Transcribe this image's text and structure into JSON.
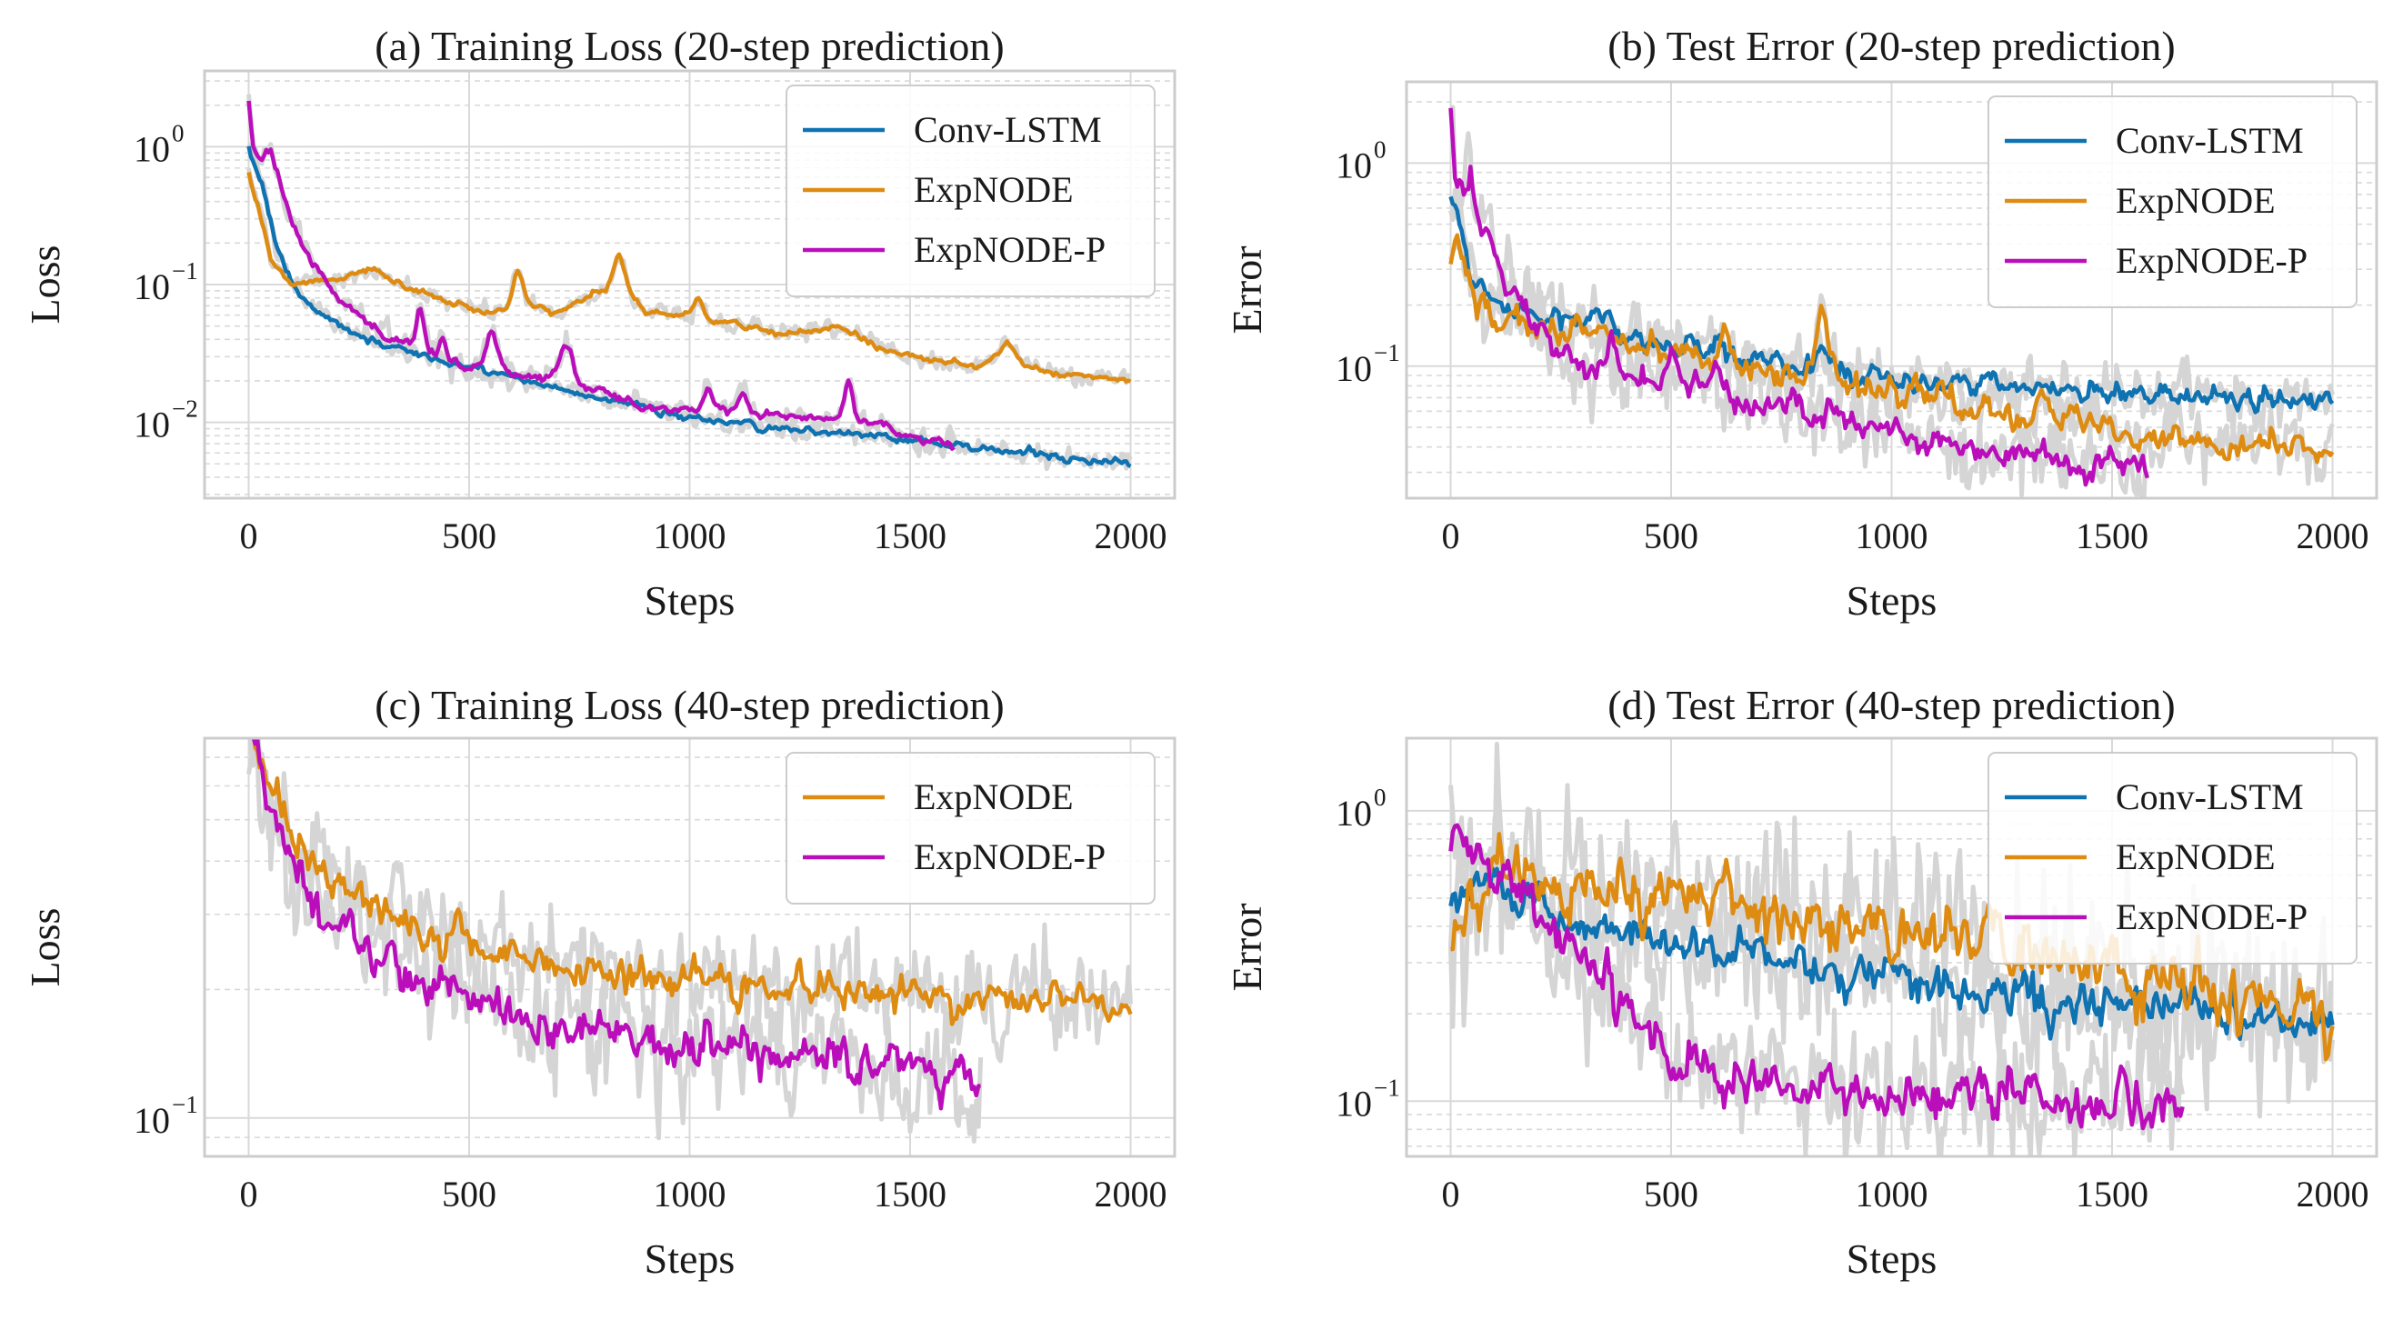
{
  "colors": {
    "conv_lstm": "#0f72b1",
    "expnode": "#de8b12",
    "expnode_p": "#bb0ebb",
    "band": "#d5d5d5",
    "grid": "#d9d9d9",
    "spine": "#cccccc"
  },
  "chart_data": [
    {
      "type": "line",
      "title": "(a) Training Loss (20-step prediction)",
      "xlabel": "Steps",
      "ylabel": "Loss",
      "yscale": "log",
      "xlim": [
        -100,
        2100
      ],
      "ylim_log10": [
        -2.55,
        0.55
      ],
      "xticks": [
        0,
        500,
        1000,
        1500,
        2000
      ],
      "yticks": [
        {
          "base": "10",
          "exp": "0",
          "value": 1
        },
        {
          "base": "10",
          "exp": "−1",
          "value": 0.1
        },
        {
          "base": "10",
          "exp": "−2",
          "value": 0.01
        }
      ],
      "legend": "top-right",
      "series": [
        {
          "name": "Conv-LSTM",
          "color_key": "conv_lstm",
          "x_end": 2000,
          "noise": 0.03,
          "anchors": [
            [
              0,
              1.0
            ],
            [
              30,
              0.55
            ],
            [
              60,
              0.2
            ],
            [
              100,
              0.1
            ],
            [
              150,
              0.065
            ],
            [
              250,
              0.042
            ],
            [
              400,
              0.03
            ],
            [
              600,
              0.021
            ],
            [
              800,
              0.015
            ],
            [
              1000,
              0.011
            ],
            [
              1200,
              0.009
            ],
            [
              1400,
              0.008
            ],
            [
              1600,
              0.0068
            ],
            [
              1800,
              0.0058
            ],
            [
              2000,
              0.005
            ]
          ],
          "spikes": []
        },
        {
          "name": "ExpNODE",
          "color_key": "expnode",
          "x_end": 2000,
          "noise": 0.025,
          "anchors": [
            [
              0,
              0.65
            ],
            [
              20,
              0.4
            ],
            [
              50,
              0.15
            ],
            [
              100,
              0.1
            ],
            [
              200,
              0.11
            ],
            [
              270,
              0.13
            ],
            [
              350,
              0.1
            ],
            [
              450,
              0.075
            ],
            [
              550,
              0.06
            ],
            [
              620,
              0.075
            ],
            [
              700,
              0.065
            ],
            [
              840,
              0.1
            ],
            [
              900,
              0.065
            ],
            [
              1000,
              0.06
            ],
            [
              1100,
              0.052
            ],
            [
              1200,
              0.045
            ],
            [
              1350,
              0.048
            ],
            [
              1450,
              0.033
            ],
            [
              1550,
              0.028
            ],
            [
              1650,
              0.025
            ],
            [
              1720,
              0.03
            ],
            [
              1800,
              0.024
            ],
            [
              1900,
              0.021
            ],
            [
              2000,
              0.02
            ]
          ],
          "spikes": [
            [
              610,
              0.25,
              10
            ],
            [
              840,
              0.22,
              12
            ],
            [
              1020,
              0.12,
              10
            ],
            [
              1720,
              0.1,
              15
            ]
          ]
        },
        {
          "name": "ExpNODE-P",
          "color_key": "expnode_p",
          "x_end": 1600,
          "noise": 0.035,
          "anchors": [
            [
              0,
              2.2
            ],
            [
              10,
              1.0
            ],
            [
              30,
              0.8
            ],
            [
              50,
              1.0
            ],
            [
              80,
              0.45
            ],
            [
              120,
              0.2
            ],
            [
              200,
              0.08
            ],
            [
              300,
              0.045
            ],
            [
              380,
              0.035
            ],
            [
              450,
              0.026
            ],
            [
              550,
              0.024
            ],
            [
              650,
              0.022
            ],
            [
              750,
              0.018
            ],
            [
              850,
              0.015
            ],
            [
              1000,
              0.012
            ],
            [
              1100,
              0.012
            ],
            [
              1250,
              0.011
            ],
            [
              1400,
              0.01
            ],
            [
              1500,
              0.008
            ],
            [
              1600,
              0.007
            ]
          ],
          "spikes": [
            [
              390,
              0.3,
              8
            ],
            [
              440,
              0.18,
              8
            ],
            [
              550,
              0.3,
              12
            ],
            [
              720,
              0.3,
              15
            ],
            [
              1040,
              0.18,
              10
            ],
            [
              1120,
              0.15,
              10
            ],
            [
              1360,
              0.3,
              10
            ]
          ]
        }
      ]
    },
    {
      "type": "line",
      "title": "(b) Test Error (20-step prediction)",
      "xlabel": "Steps",
      "ylabel": "Error",
      "yscale": "log",
      "xlim": [
        -100,
        2100
      ],
      "ylim_log10": [
        -1.65,
        0.4
      ],
      "xticks": [
        0,
        500,
        1000,
        1500,
        2000
      ],
      "yticks": [
        {
          "base": "10",
          "exp": "0",
          "value": 1
        },
        {
          "base": "10",
          "exp": "−1",
          "value": 0.1
        }
      ],
      "legend": "top-right",
      "series": [
        {
          "name": "Conv-LSTM",
          "color_key": "conv_lstm",
          "x_end": 2000,
          "noise": 0.06,
          "anchors": [
            [
              0,
              0.7
            ],
            [
              20,
              0.5
            ],
            [
              40,
              0.3
            ],
            [
              80,
              0.22
            ],
            [
              150,
              0.18
            ],
            [
              300,
              0.16
            ],
            [
              500,
              0.13
            ],
            [
              700,
              0.1
            ],
            [
              900,
              0.09
            ],
            [
              1100,
              0.085
            ],
            [
              1300,
              0.08
            ],
            [
              1500,
              0.075
            ],
            [
              1700,
              0.07
            ],
            [
              1900,
              0.068
            ],
            [
              2000,
              0.07
            ]
          ],
          "spikes": [
            [
              600,
              0.08,
              15
            ],
            [
              840,
              0.12,
              12
            ]
          ]
        },
        {
          "name": "ExpNODE",
          "color_key": "expnode",
          "x_end": 2000,
          "noise": 0.07,
          "anchors": [
            [
              0,
              0.32
            ],
            [
              15,
              0.45
            ],
            [
              30,
              0.3
            ],
            [
              60,
              0.2
            ],
            [
              100,
              0.18
            ],
            [
              200,
              0.16
            ],
            [
              300,
              0.15
            ],
            [
              400,
              0.13
            ],
            [
              500,
              0.115
            ],
            [
              600,
              0.105
            ],
            [
              700,
              0.095
            ],
            [
              800,
              0.085
            ],
            [
              850,
              0.1
            ],
            [
              900,
              0.08
            ],
            [
              1000,
              0.075
            ],
            [
              1100,
              0.072
            ],
            [
              1200,
              0.06
            ],
            [
              1300,
              0.056
            ],
            [
              1400,
              0.058
            ],
            [
              1500,
              0.047
            ],
            [
              1700,
              0.043
            ],
            [
              1800,
              0.041
            ],
            [
              2000,
              0.04
            ]
          ],
          "spikes": [
            [
              620,
              0.15,
              10
            ],
            [
              840,
              0.3,
              10
            ],
            [
              1340,
              0.12,
              10
            ]
          ]
        },
        {
          "name": "ExpNODE-P",
          "color_key": "expnode_p",
          "x_end": 1580,
          "noise": 0.08,
          "anchors": [
            [
              0,
              2.0
            ],
            [
              10,
              0.8
            ],
            [
              30,
              0.6
            ],
            [
              45,
              0.9
            ],
            [
              70,
              0.5
            ],
            [
              120,
              0.28
            ],
            [
              180,
              0.17
            ],
            [
              230,
              0.12
            ],
            [
              280,
              0.095
            ],
            [
              350,
              0.1
            ],
            [
              450,
              0.085
            ],
            [
              550,
              0.08
            ],
            [
              650,
              0.068
            ],
            [
              750,
              0.063
            ],
            [
              850,
              0.057
            ],
            [
              950,
              0.052
            ],
            [
              1050,
              0.046
            ],
            [
              1150,
              0.041
            ],
            [
              1250,
              0.037
            ],
            [
              1350,
              0.035
            ],
            [
              1450,
              0.032
            ],
            [
              1580,
              0.031
            ]
          ],
          "spikes": [
            [
              370,
              0.18,
              10
            ],
            [
              500,
              0.15,
              10
            ],
            [
              600,
              0.15,
              10
            ],
            [
              780,
              0.12,
              10
            ]
          ]
        }
      ]
    },
    {
      "type": "line",
      "title": "(c) Training Loss (40-step prediction)",
      "xlabel": "Steps",
      "ylabel": "Loss",
      "yscale": "log",
      "xlim": [
        -100,
        2100
      ],
      "ylim_log10": [
        -1.09,
        -0.11
      ],
      "xticks": [
        0,
        500,
        1000,
        1500,
        2000
      ],
      "yticks": [
        {
          "base": "10",
          "exp": "−1",
          "value": 0.1
        }
      ],
      "legend": "top-right",
      "series": [
        {
          "name": "ExpNODE",
          "color_key": "expnode",
          "x_end": 2000,
          "noise": 0.05,
          "anchors": [
            [
              0,
              0.8
            ],
            [
              20,
              0.72
            ],
            [
              50,
              0.6
            ],
            [
              100,
              0.45
            ],
            [
              200,
              0.36
            ],
            [
              300,
              0.3
            ],
            [
              400,
              0.27
            ],
            [
              500,
              0.25
            ],
            [
              700,
              0.23
            ],
            [
              900,
              0.215
            ],
            [
              1100,
              0.205
            ],
            [
              1300,
              0.2
            ],
            [
              1500,
              0.195
            ],
            [
              1700,
              0.19
            ],
            [
              1900,
              0.185
            ],
            [
              2000,
              0.18
            ]
          ],
          "spikes": []
        },
        {
          "name": "ExpNODE-P",
          "color_key": "expnode_p",
          "x_end": 1660,
          "noise": 0.06,
          "anchors": [
            [
              0,
              0.8
            ],
            [
              20,
              0.7
            ],
            [
              50,
              0.5
            ],
            [
              100,
              0.37
            ],
            [
              200,
              0.29
            ],
            [
              300,
              0.24
            ],
            [
              400,
              0.21
            ],
            [
              500,
              0.19
            ],
            [
              600,
              0.175
            ],
            [
              800,
              0.16
            ],
            [
              1000,
              0.148
            ],
            [
              1200,
              0.14
            ],
            [
              1400,
              0.135
            ],
            [
              1550,
              0.13
            ],
            [
              1650,
              0.12
            ]
          ],
          "spikes": []
        }
      ]
    },
    {
      "type": "line",
      "title": "(d) Test Error (40-step prediction)",
      "xlabel": "Steps",
      "ylabel": "Error",
      "yscale": "log",
      "xlim": [
        -100,
        2100
      ],
      "ylim_log10": [
        -1.19,
        0.25
      ],
      "xticks": [
        0,
        500,
        1000,
        1500,
        2000
      ],
      "yticks": [
        {
          "base": "10",
          "exp": "0",
          "value": 1
        },
        {
          "base": "10",
          "exp": "−1",
          "value": 0.1
        }
      ],
      "legend": "top-right",
      "series": [
        {
          "name": "Conv-LSTM",
          "color_key": "conv_lstm",
          "x_end": 2000,
          "noise": 0.08,
          "anchors": [
            [
              0,
              0.52
            ],
            [
              30,
              0.5
            ],
            [
              60,
              0.62
            ],
            [
              100,
              0.6
            ],
            [
              150,
              0.5
            ],
            [
              200,
              0.45
            ],
            [
              300,
              0.4
            ],
            [
              400,
              0.37
            ],
            [
              500,
              0.35
            ],
            [
              700,
              0.31
            ],
            [
              900,
              0.29
            ],
            [
              1100,
              0.27
            ],
            [
              1300,
              0.24
            ],
            [
              1500,
              0.22
            ],
            [
              1700,
              0.21
            ],
            [
              1900,
              0.19
            ],
            [
              2000,
              0.19
            ]
          ],
          "spikes": []
        },
        {
          "name": "ExpNODE",
          "color_key": "expnode",
          "x_end": 2000,
          "noise": 0.12,
          "anchors": [
            [
              0,
              0.42
            ],
            [
              40,
              0.5
            ],
            [
              80,
              0.4
            ],
            [
              100,
              0.65
            ],
            [
              200,
              0.58
            ],
            [
              300,
              0.56
            ],
            [
              400,
              0.55
            ],
            [
              500,
              0.5
            ],
            [
              700,
              0.46
            ],
            [
              900,
              0.42
            ],
            [
              1100,
              0.36
            ],
            [
              1300,
              0.31
            ],
            [
              1500,
              0.27
            ],
            [
              1700,
              0.24
            ],
            [
              1900,
              0.22
            ],
            [
              2000,
              0.2
            ]
          ],
          "spikes": []
        },
        {
          "name": "ExpNODE-P",
          "color_key": "expnode_p",
          "x_end": 1660,
          "noise": 0.09,
          "anchors": [
            [
              0,
              0.85
            ],
            [
              30,
              0.75
            ],
            [
              100,
              0.6
            ],
            [
              200,
              0.45
            ],
            [
              300,
              0.3
            ],
            [
              400,
              0.2
            ],
            [
              500,
              0.14
            ],
            [
              600,
              0.12
            ],
            [
              800,
              0.11
            ],
            [
              1000,
              0.107
            ],
            [
              1200,
              0.107
            ],
            [
              1400,
              0.1
            ],
            [
              1500,
              0.1
            ],
            [
              1600,
              0.105
            ],
            [
              1660,
              0.1
            ]
          ],
          "spikes": []
        }
      ]
    }
  ]
}
